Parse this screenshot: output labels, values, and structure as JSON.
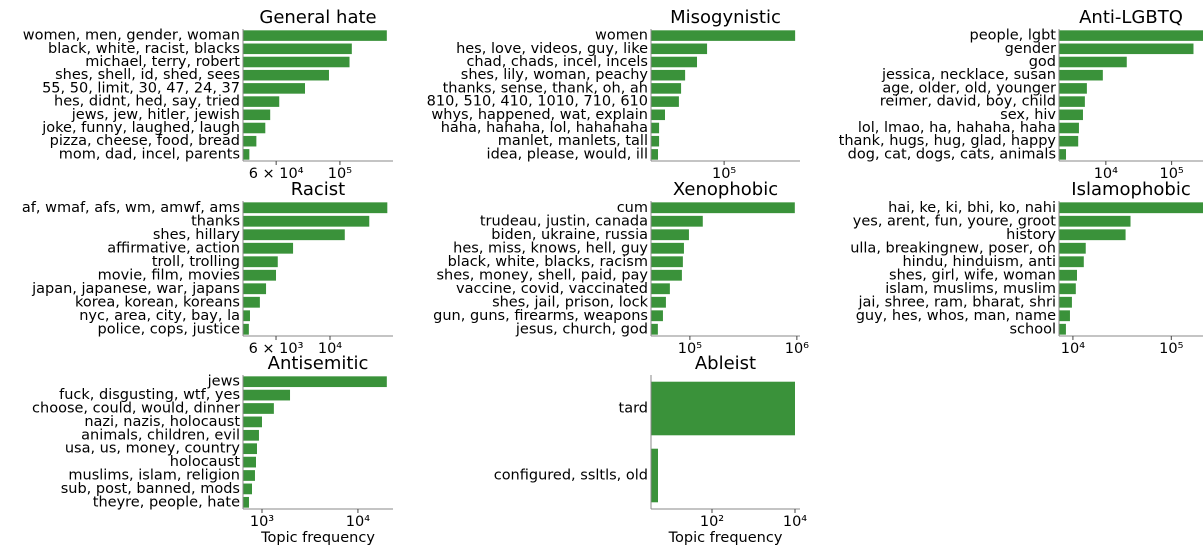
{
  "chart_data": [
    {
      "type": "bar",
      "orientation": "horizontal",
      "title": "General hate",
      "xscale": "log",
      "color": "#3a923a",
      "categories": [
        "women, men, gender, woman",
        "black, white, racist, blacks",
        "michael, terry, robert",
        "shes, shell, id, shed, sees",
        "55, 50, limit, 30, 47, 24, 37",
        "hes, didnt, hed, say, tried",
        "jews, jew, hitler, jewish",
        "joke, funny, laughed, laugh",
        "pizza, cheese, food, bread",
        "mom, dad, incel, parents"
      ],
      "values": [
        145600,
        110000,
        108000,
        91600,
        75600,
        61500,
        57200,
        55000,
        51200,
        48400
      ],
      "xlim": [
        46000,
        153000
      ],
      "xticks": [
        {
          "value": 60000,
          "label": "6 × 10⁴"
        },
        {
          "value": 100000,
          "label": "10⁵"
        }
      ]
    },
    {
      "type": "bar",
      "orientation": "horizontal",
      "title": "Misogynistic",
      "xscale": "log",
      "color": "#3a923a",
      "categories": [
        "women",
        "hes, love, videos, guy, like",
        "chad, chads, incel, incels",
        "shes, lily, woman, peachy",
        "thanks, sense, thank, oh, ah",
        "810, 510, 410, 1010, 710, 610",
        "whys, happened, wat, explain",
        "haha, hahaha, lol, hahahaha",
        "manlet, manlets, tall",
        "idea, please, would, ill"
      ],
      "values": [
        297000,
        77000,
        66000,
        55000,
        51700,
        50000,
        40400,
        36900,
        36900,
        36300
      ],
      "xlim": [
        32600,
        320000
      ],
      "xticks": [
        {
          "value": 100000,
          "label": "10⁵"
        }
      ]
    },
    {
      "type": "bar",
      "orientation": "horizontal",
      "title": "Anti-LGBTQ",
      "xscale": "log",
      "color": "#3a923a",
      "categories": [
        "people, lgbt",
        "gender",
        "god",
        "jessica, necklace, susan",
        "age, older, old, younger",
        "reimer, david, boy, child",
        "sex, hiv",
        "lol, lmao, ha, hahaha, haha",
        "thank, hugs, hug, glad, happy",
        "dog, cat, dogs, cats, animals"
      ],
      "values": [
        300000,
        215000,
        20800,
        9000,
        5150,
        4800,
        4490,
        3900,
        3800,
        2480
      ],
      "xlim": [
        1940,
        300000
      ],
      "xticks": [
        {
          "value": 10000,
          "label": "10⁴"
        },
        {
          "value": 100000,
          "label": "10⁵"
        }
      ]
    },
    {
      "type": "bar",
      "orientation": "horizontal",
      "title": "Racist",
      "xscale": "log",
      "color": "#3a923a",
      "categories": [
        "af, wmaf, afs, wm, amwf, ams",
        "thanks",
        "shes, hillary",
        "affirmative, action",
        "troll, trolling",
        "movie, film, movies",
        "japan, japanese, war, japans",
        "korea, korean, koreans",
        "nyc, area, city, bay, la",
        "police, cops, justice"
      ],
      "values": [
        17200,
        14500,
        11500,
        7050,
        6100,
        6000,
        5460,
        5150,
        4690,
        4640
      ],
      "xlim": [
        4390,
        18150
      ],
      "xticks": [
        {
          "value": 6000,
          "label": "6 × 10³"
        },
        {
          "value": 10000,
          "label": "10⁴"
        }
      ]
    },
    {
      "type": "bar",
      "orientation": "horizontal",
      "title": "Xenophobic",
      "xscale": "log",
      "color": "#3a923a",
      "categories": [
        "cum",
        "trudeau, justin, canada",
        "biden, ukraine, russia",
        "hes, miss, knows, hell, guy",
        "black, white, blacks, racism",
        "shes, money, shell, paid, pay",
        "vaccine, covid, vaccinated",
        "shes, jail, prison, lock",
        "gun, guns, firearms, weapons",
        "jesus, church, god"
      ],
      "values": [
        957000,
        132000,
        98000,
        88000,
        86000,
        84200,
        65000,
        59700,
        56000,
        50200
      ],
      "xlim": [
        43300,
        1070000
      ],
      "xticks": [
        {
          "value": 100000,
          "label": "10⁵"
        },
        {
          "value": 1000000,
          "label": "10⁶"
        }
      ]
    },
    {
      "type": "bar",
      "orientation": "horizontal",
      "title": "Islamophobic",
      "xscale": "log",
      "color": "#3a923a",
      "categories": [
        "hai, ke, ki, bhi, ko, nahi",
        "yes, arent, fun, youre, groot",
        "history",
        "ulla, breakingnew, poser, oh",
        "hindu, hinduism, anti",
        "shes, girl, wife, woman",
        "islam, muslims, muslim",
        "jai, shree, ram, bharat, shri",
        "guy, hes, whos, man, name",
        "school"
      ],
      "values": [
        210000,
        38500,
        34300,
        13500,
        12900,
        11000,
        10700,
        9770,
        9330,
        8490
      ],
      "xlim": [
        7220,
        210000
      ],
      "xticks": [
        {
          "value": 10000,
          "label": "10⁴"
        },
        {
          "value": 100000,
          "label": "10⁵"
        }
      ]
    },
    {
      "type": "bar",
      "orientation": "horizontal",
      "title": "Antisemitic",
      "xscale": "log",
      "color": "#3a923a",
      "xlabel": "Topic frequency",
      "categories": [
        "jews",
        "fuck, disgusting, wtf, yes",
        "choose, could, would, dinner",
        "nazi, nazis, holocaust",
        "animals, children, evil",
        "usa, us, money, country",
        "holocaust",
        "muslims, islam, religion",
        "sub, post, banned, mods",
        "theyre, people, hate"
      ],
      "values": [
        20000,
        1960,
        1330,
        1000,
        930,
        887,
        866,
        845,
        787,
        732
      ],
      "xlim": [
        634,
        23200
      ],
      "xticks": [
        {
          "value": 1000,
          "label": "10³"
        },
        {
          "value": 10000,
          "label": "10⁴"
        }
      ]
    },
    {
      "type": "bar",
      "orientation": "horizontal",
      "title": "Ableist",
      "xscale": "log",
      "color": "#3a923a",
      "xlabel": "Topic frequency",
      "categories": [
        "tard",
        "configured, ssltls, old"
      ],
      "values": [
        10000,
        5
      ],
      "xlim": [
        3.39,
        13200
      ],
      "xticks": [
        {
          "value": 100,
          "label": "10²"
        },
        {
          "value": 10000,
          "label": "10⁴"
        }
      ]
    }
  ]
}
